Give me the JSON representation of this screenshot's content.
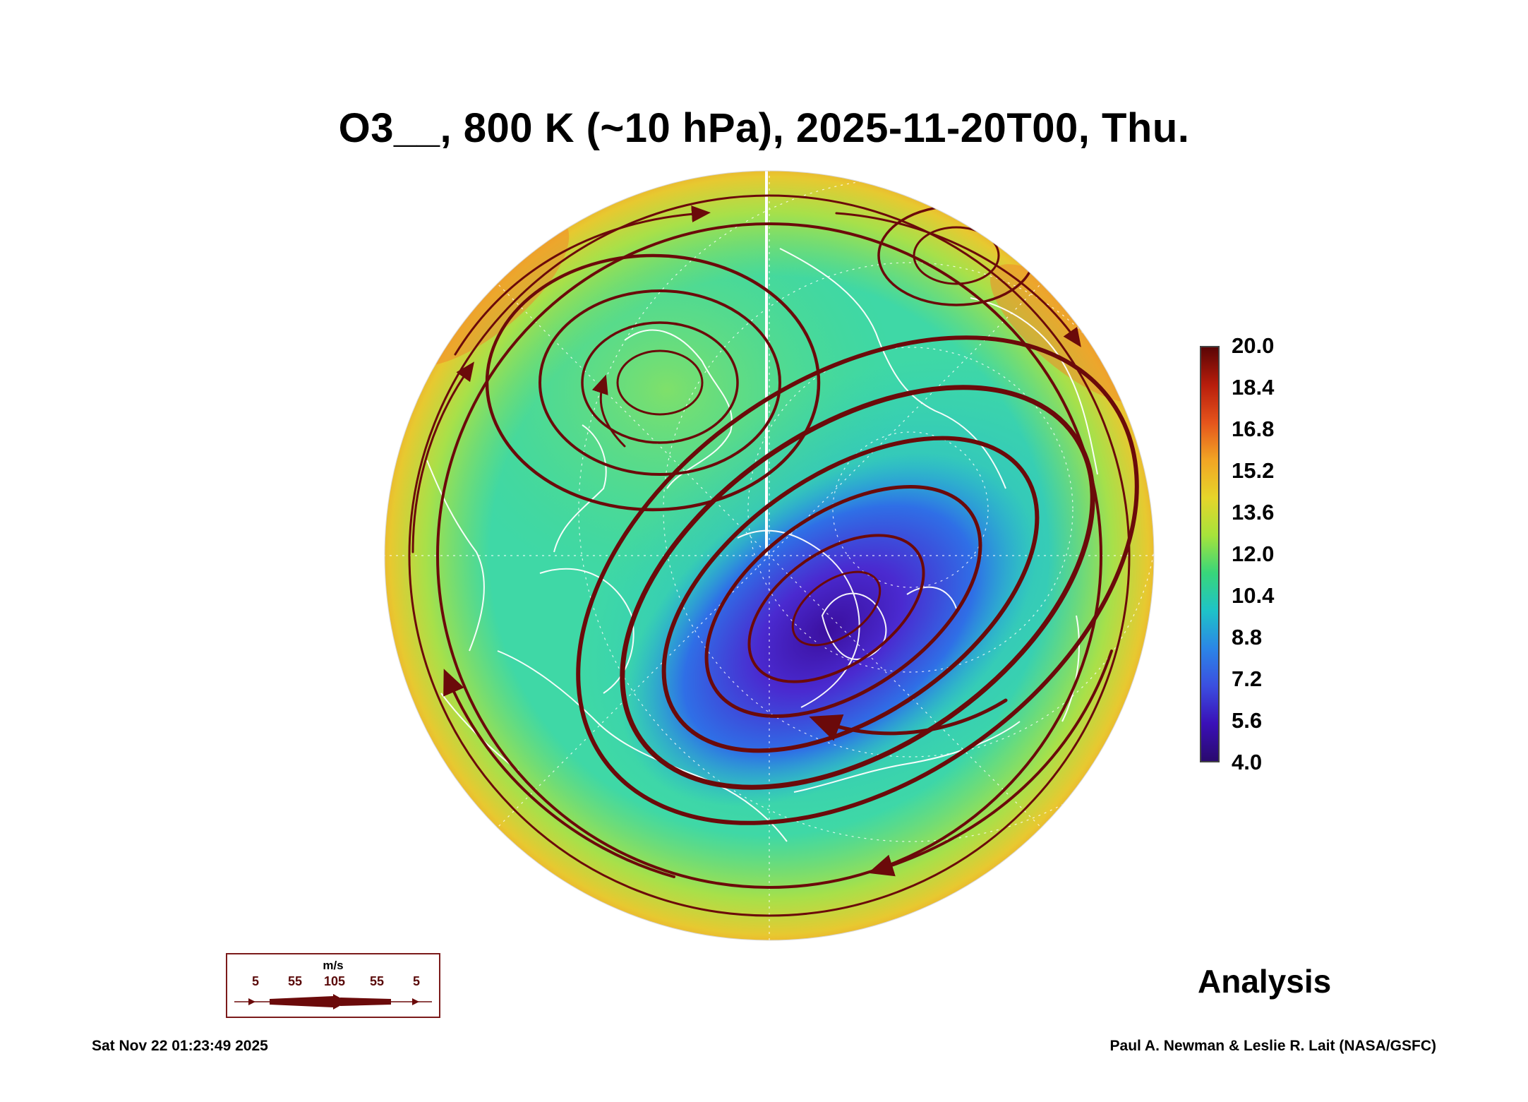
{
  "title": "O3__, 800 K (~10 hPa), 2025-11-20T00, Thu.",
  "colorbar": {
    "ticks": [
      "20.0",
      "18.4",
      "16.8",
      "15.2",
      "13.6",
      "12.0",
      "10.4",
      "8.8",
      "7.2",
      "5.6",
      "4.0"
    ],
    "colors": [
      "#2a0a6e",
      "#3a10b8",
      "#3b4fe0",
      "#2b86e6",
      "#1ec3c8",
      "#38d67a",
      "#a6e33b",
      "#e6d52a",
      "#f2a524",
      "#e5541c",
      "#b81d0c",
      "#5a0505"
    ]
  },
  "label": "Analysis",
  "wind_legend": {
    "unit": "m/s",
    "values": [
      "5",
      "55",
      "105",
      "55",
      "5"
    ]
  },
  "footer": {
    "timestamp": "Sat Nov 22 01:23:49 2025",
    "credit": "Paul A. Newman & Leslie R. Lait (NASA/GSFC)"
  }
}
